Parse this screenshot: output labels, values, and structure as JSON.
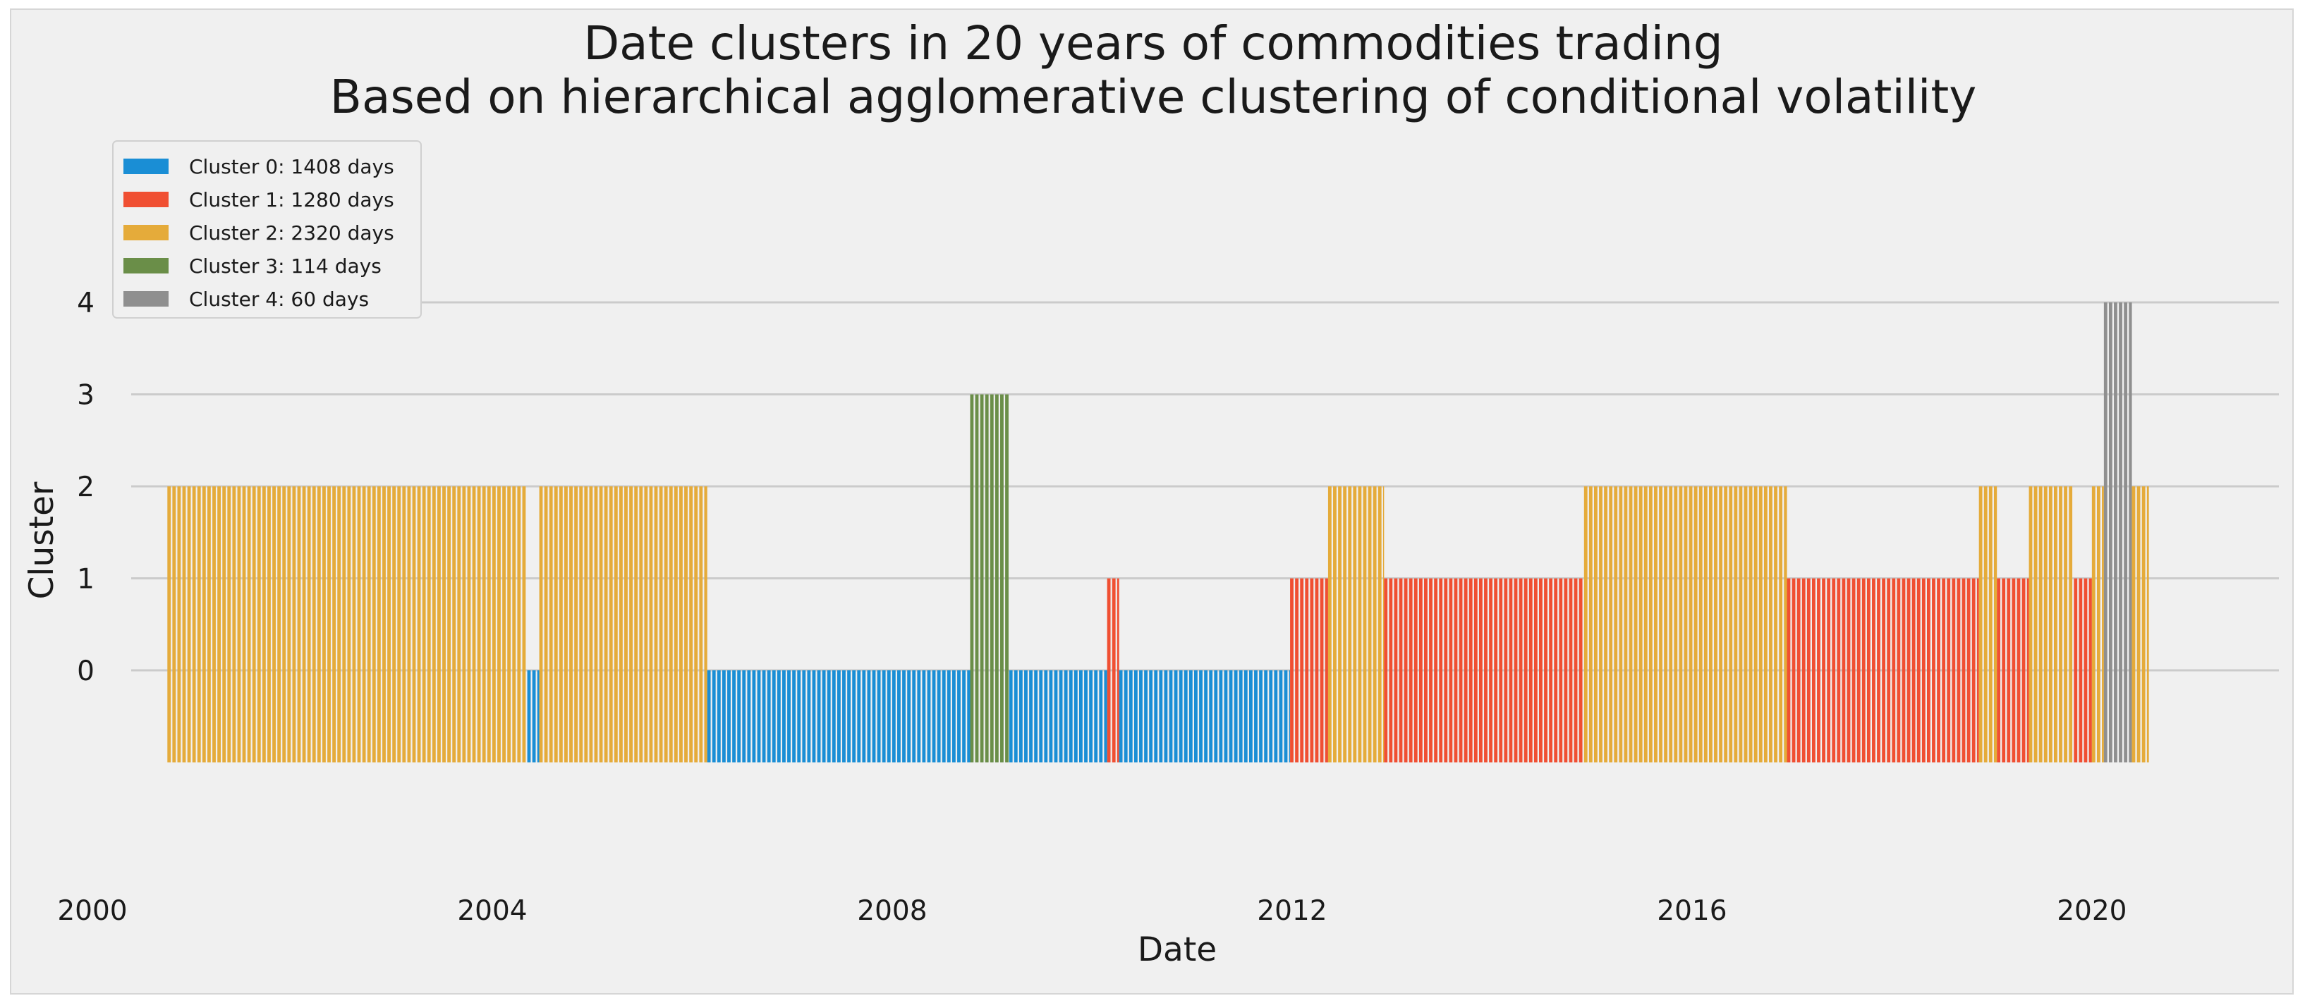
{
  "chart_data": {
    "type": "bar",
    "title": "Date clusters in 20 years of commodities trading",
    "subtitle": "Based on hierarchical agglomerative clustering of conditional volatility",
    "xlabel": "Date",
    "ylabel": "Cluster",
    "xlim": [
      2000.0,
      2021.8
    ],
    "ylim": [
      -1.9,
      4.0
    ],
    "xticks": [
      2000,
      2004,
      2008,
      2012,
      2016,
      2020
    ],
    "yticks": [
      0,
      1,
      2,
      3,
      4
    ],
    "grid": true,
    "legend_position": "top-left",
    "bar_baseline": -1,
    "series": [
      {
        "cluster": 0,
        "name": "Cluster 0: 1408 days",
        "color": "#1a8ed5"
      },
      {
        "cluster": 1,
        "name": "Cluster 1: 1280 days",
        "color": "#f04f32"
      },
      {
        "cluster": 2,
        "name": "Cluster 2: 2320 days",
        "color": "#e5ab3a"
      },
      {
        "cluster": 3,
        "name": "Cluster 3: 114 days",
        "color": "#6a8e48"
      },
      {
        "cluster": 4,
        "name": "Cluster 4: 60 days",
        "color": "#8f8f8f"
      }
    ],
    "segments": [
      {
        "start": 2000.75,
        "end": 2004.35,
        "cluster": 2
      },
      {
        "start": 2004.35,
        "end": 2004.47,
        "cluster": 0
      },
      {
        "start": 2004.47,
        "end": 2006.15,
        "cluster": 2
      },
      {
        "start": 2006.15,
        "end": 2008.78,
        "cluster": 0
      },
      {
        "start": 2008.78,
        "end": 2009.17,
        "cluster": 3
      },
      {
        "start": 2009.17,
        "end": 2010.15,
        "cluster": 0
      },
      {
        "start": 2010.15,
        "end": 2010.27,
        "cluster": 1
      },
      {
        "start": 2010.27,
        "end": 2011.98,
        "cluster": 0
      },
      {
        "start": 2011.98,
        "end": 2012.36,
        "cluster": 1
      },
      {
        "start": 2012.36,
        "end": 2012.92,
        "cluster": 2
      },
      {
        "start": 2012.92,
        "end": 2014.92,
        "cluster": 1
      },
      {
        "start": 2014.92,
        "end": 2016.95,
        "cluster": 2
      },
      {
        "start": 2016.95,
        "end": 2018.87,
        "cluster": 1
      },
      {
        "start": 2018.87,
        "end": 2019.05,
        "cluster": 2
      },
      {
        "start": 2019.05,
        "end": 2019.37,
        "cluster": 1
      },
      {
        "start": 2019.37,
        "end": 2019.82,
        "cluster": 2
      },
      {
        "start": 2019.82,
        "end": 2020.0,
        "cluster": 1
      },
      {
        "start": 2020.0,
        "end": 2020.12,
        "cluster": 2
      },
      {
        "start": 2020.12,
        "end": 2020.4,
        "cluster": 4
      },
      {
        "start": 2020.4,
        "end": 2020.57,
        "cluster": 2
      }
    ]
  }
}
